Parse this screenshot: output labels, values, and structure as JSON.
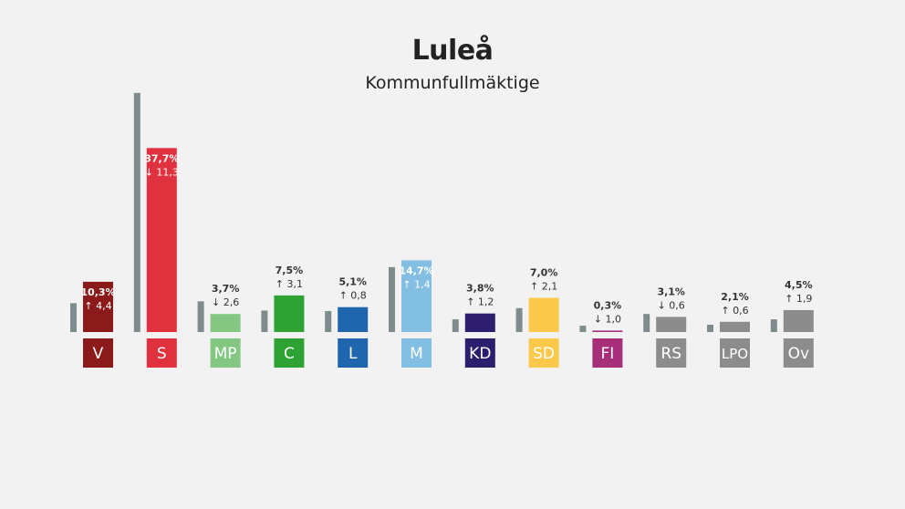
{
  "header": {
    "title": "Luleå",
    "subtitle": "Kommunfullmäktige"
  },
  "chart_data": {
    "type": "bar",
    "title": "Luleå",
    "subtitle": "Kommunfullmäktige",
    "categories": [
      "V",
      "S",
      "MP",
      "C",
      "L",
      "M",
      "KD",
      "SD",
      "FI",
      "RS",
      "LPO",
      "Ov"
    ],
    "series": [
      {
        "values": [
          5.9,
          49.0,
          6.3,
          4.4,
          4.3,
          13.3,
          2.6,
          4.9,
          1.3,
          3.7,
          1.5,
          2.6
        ]
      },
      {
        "values": [
          10.3,
          37.7,
          3.7,
          7.5,
          5.1,
          14.7,
          3.8,
          7.0,
          0.3,
          3.1,
          2.1,
          4.5
        ]
      }
    ],
    "value_labels": [
      "10,3%",
      "37,7%",
      "3,7%",
      "7,5%",
      "5,1%",
      "14,7%",
      "3,8%",
      "7,0%",
      "0,3%",
      "3,1%",
      "2,1%",
      "4,5%"
    ],
    "change_labels": [
      "4,4",
      "11,3",
      "2,6",
      "3,1",
      "0,8",
      "1,4",
      "1,2",
      "2,1",
      "1,0",
      "0,6",
      "0,6",
      "1,9"
    ],
    "change_direction": [
      "up",
      "down",
      "down",
      "up",
      "up",
      "up",
      "up",
      "up",
      "down",
      "down",
      "up",
      "up"
    ],
    "label_inside": [
      true,
      true,
      false,
      false,
      false,
      true,
      false,
      false,
      false,
      false,
      false,
      false
    ],
    "colors": [
      "#8b1a1a",
      "#e0313e",
      "#83c783",
      "#2ea334",
      "#1f66ae",
      "#83bfe3",
      "#2c1d6e",
      "#fbc84a",
      "#a72e78",
      "#8c8c8c",
      "#8c8c8c",
      "#8c8c8c"
    ],
    "previous_color": "#7f8c8d",
    "ylim": [
      0,
      50
    ],
    "grid": false
  }
}
